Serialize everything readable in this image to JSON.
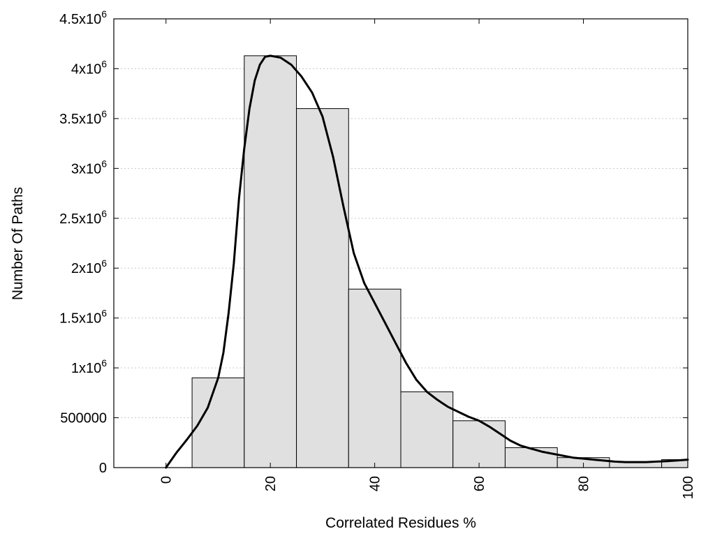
{
  "chart_data": {
    "type": "bar",
    "title": "",
    "xlabel": "Correlated Residues %",
    "ylabel": "Number Of Paths",
    "xlim": [
      -10,
      100
    ],
    "ylim": [
      0,
      4500000
    ],
    "grid": true,
    "bin_width": 10,
    "x_ticks": [
      {
        "value": 0,
        "label": "0"
      },
      {
        "value": 20,
        "label": "20"
      },
      {
        "value": 40,
        "label": "40"
      },
      {
        "value": 60,
        "label": "60"
      },
      {
        "value": 80,
        "label": "80"
      },
      {
        "value": 100,
        "label": "100"
      }
    ],
    "y_ticks": [
      {
        "value": 0,
        "base": "0",
        "exp": ""
      },
      {
        "value": 500000,
        "base": "500000",
        "exp": ""
      },
      {
        "value": 1000000,
        "base": "1x10",
        "exp": "6"
      },
      {
        "value": 1500000,
        "base": "1.5x10",
        "exp": "6"
      },
      {
        "value": 2000000,
        "base": "2x10",
        "exp": "6"
      },
      {
        "value": 2500000,
        "base": "2.5x10",
        "exp": "6"
      },
      {
        "value": 3000000,
        "base": "3x10",
        "exp": "6"
      },
      {
        "value": 3500000,
        "base": "3.5x10",
        "exp": "6"
      },
      {
        "value": 4000000,
        "base": "4x10",
        "exp": "6"
      },
      {
        "value": 4500000,
        "base": "4.5x10",
        "exp": "6"
      }
    ],
    "bars": [
      {
        "x": 10,
        "value": 900000
      },
      {
        "x": 20,
        "value": 4130000
      },
      {
        "x": 30,
        "value": 3600000
      },
      {
        "x": 40,
        "value": 1790000
      },
      {
        "x": 50,
        "value": 760000
      },
      {
        "x": 60,
        "value": 470000
      },
      {
        "x": 70,
        "value": 200000
      },
      {
        "x": 80,
        "value": 100000
      },
      {
        "x": 90,
        "value": 60000
      },
      {
        "x": 100,
        "value": 80000
      }
    ],
    "curve": {
      "x": [
        0,
        2,
        4,
        6,
        8,
        10,
        11,
        12,
        13,
        14,
        15,
        16,
        17,
        18,
        19,
        20,
        22,
        24,
        26,
        28,
        30,
        32,
        34,
        36,
        38,
        40,
        42,
        44,
        46,
        48,
        50,
        52,
        54,
        56,
        58,
        60,
        62,
        64,
        66,
        68,
        70,
        72,
        74,
        76,
        78,
        80,
        82,
        84,
        86,
        88,
        90,
        92,
        94,
        96,
        98,
        100
      ],
      "y": [
        0,
        150000,
        280000,
        420000,
        600000,
        900000,
        1150000,
        1550000,
        2050000,
        2700000,
        3200000,
        3600000,
        3880000,
        4040000,
        4120000,
        4130000,
        4110000,
        4040000,
        3920000,
        3760000,
        3520000,
        3120000,
        2620000,
        2150000,
        1850000,
        1650000,
        1450000,
        1250000,
        1050000,
        880000,
        760000,
        680000,
        610000,
        560000,
        510000,
        470000,
        410000,
        340000,
        270000,
        220000,
        190000,
        160000,
        140000,
        120000,
        100000,
        90000,
        80000,
        70000,
        60000,
        55000,
        55000,
        55000,
        60000,
        65000,
        72000,
        80000
      ]
    },
    "colors": {
      "bar_fill": "#e0e0e0",
      "bar_stroke": "#000000",
      "curve": "#000000",
      "grid": "#c8c8c8"
    }
  }
}
